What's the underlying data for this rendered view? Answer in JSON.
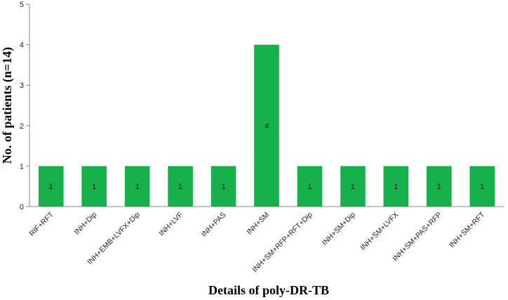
{
  "chart_data": {
    "type": "bar",
    "title": "",
    "xlabel": "Details of poly-DR-TB",
    "ylabel": "No. of patients (n=14)",
    "categories": [
      "RIF+RFT",
      "INH+Dip",
      "INH+EMB+LVFX+Dip",
      "INH+LVF",
      "INH+PAS",
      "INH+SM",
      "INH+SM+RFP+RFT+Dip",
      "INH+SM+Dip",
      "INH+SM+LVFX",
      "INH+SM+PAS+RFP",
      "INH+SM+RFT"
    ],
    "values": [
      1,
      1,
      1,
      1,
      1,
      4,
      1,
      1,
      1,
      1,
      1
    ],
    "ylim": [
      0,
      5
    ],
    "yticks": [
      "0",
      "1",
      "2",
      "3",
      "4",
      "5"
    ],
    "bar_color": "#16b14a",
    "grid": false,
    "data_labels": [
      "1",
      "1",
      "1",
      "1",
      "1",
      "4",
      "1",
      "1",
      "1",
      "1",
      "1"
    ]
  }
}
